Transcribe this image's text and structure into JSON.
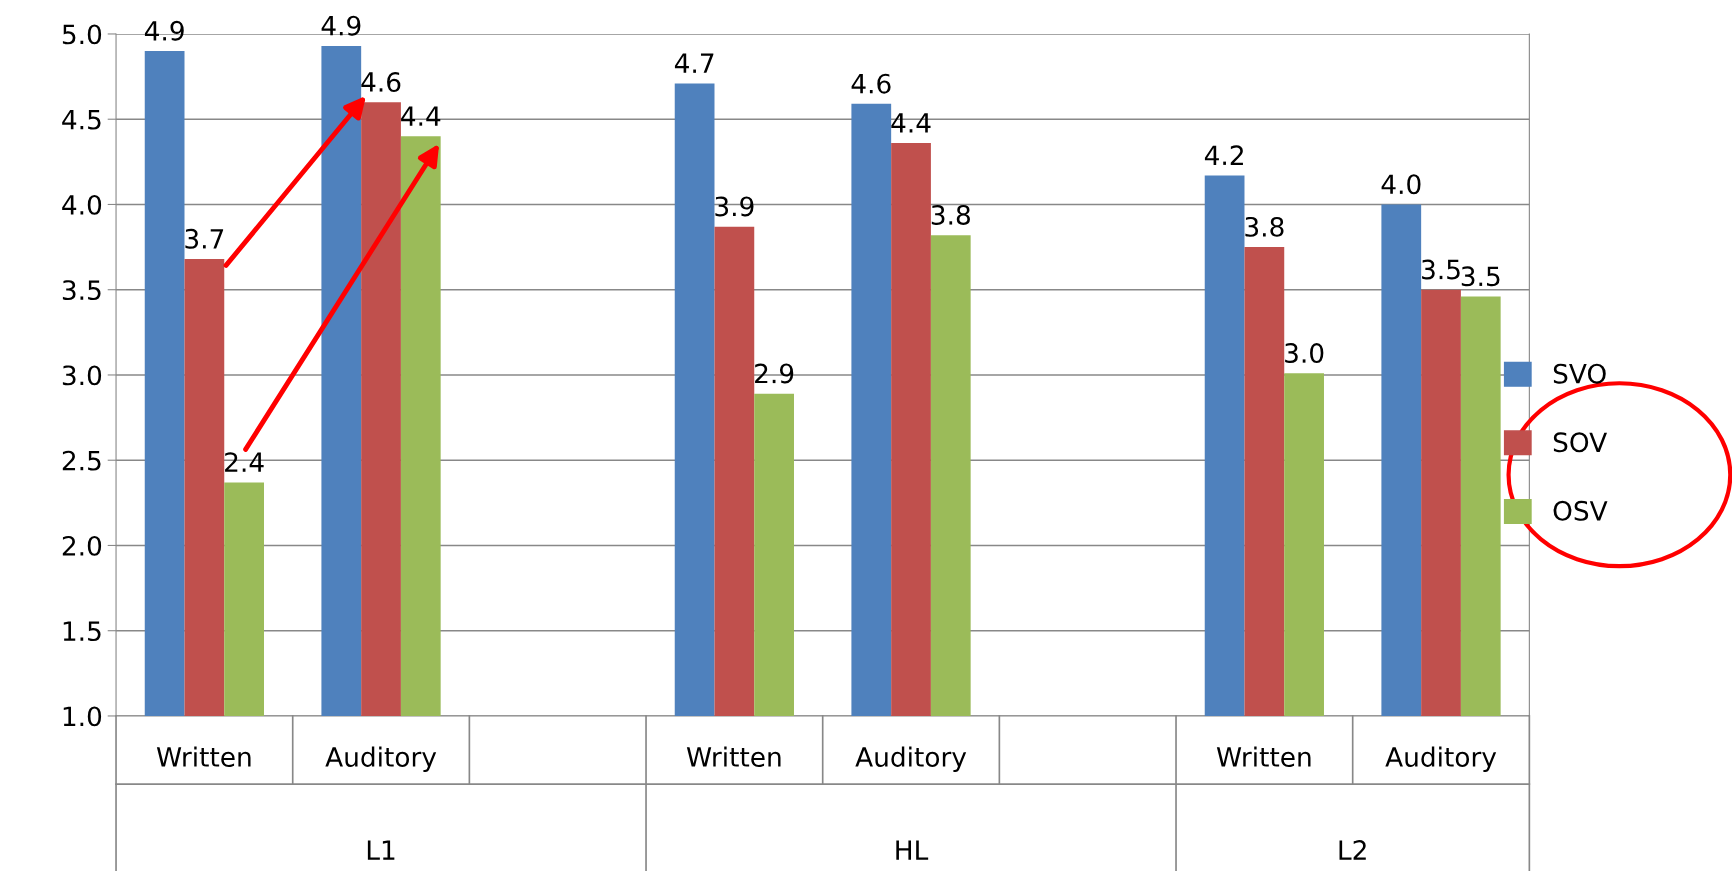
{
  "chart_data": {
    "type": "bar",
    "categories": [
      "Written",
      "Auditory",
      null,
      "Written",
      "Auditory",
      null,
      "Written",
      "Auditory"
    ],
    "annotations": [
      "L1",
      "HL",
      "L2"
    ],
    "series": [
      {
        "name": "SVO",
        "color": "#4f81bd",
        "values": [
          4.9,
          4.93,
          null,
          4.71,
          4.59,
          null,
          4.17,
          4.0
        ],
        "value_labels": [
          "4.9",
          "4.9",
          null,
          "4.7",
          "4.6",
          null,
          "4.2",
          "4.0"
        ]
      },
      {
        "name": "SOV",
        "color": "#c0504d",
        "values": [
          3.68,
          4.6,
          null,
          3.87,
          4.36,
          null,
          3.75,
          3.5
        ],
        "value_labels": [
          "3.7",
          "4.6",
          null,
          "3.9",
          "4.4",
          null,
          "3.8",
          "3.5"
        ]
      },
      {
        "name": "OSV",
        "color": "#9bbb59",
        "values": [
          2.37,
          4.4,
          null,
          2.89,
          3.82,
          null,
          3.01,
          3.46
        ],
        "value_labels": [
          "2.4",
          "4.4",
          null,
          "2.9",
          "3.8",
          null,
          "3.0",
          "3.5"
        ]
      }
    ],
    "ylim": [
      1.0,
      5.0
    ],
    "yticks": [
      {
        "value": 1.0,
        "label": "1.0"
      },
      {
        "value": 1.5,
        "label": "1.5"
      },
      {
        "value": 2.0,
        "label": "2.0"
      },
      {
        "value": 2.5,
        "label": "2.5"
      },
      {
        "value": 3.0,
        "label": "3.0"
      },
      {
        "value": 3.5,
        "label": "3.5"
      },
      {
        "value": 4.0,
        "label": "4.0"
      },
      {
        "value": 4.5,
        "label": "4.5"
      },
      {
        "value": 5.0,
        "label": "5.0"
      }
    ],
    "grid": "y",
    "legend": "right"
  }
}
